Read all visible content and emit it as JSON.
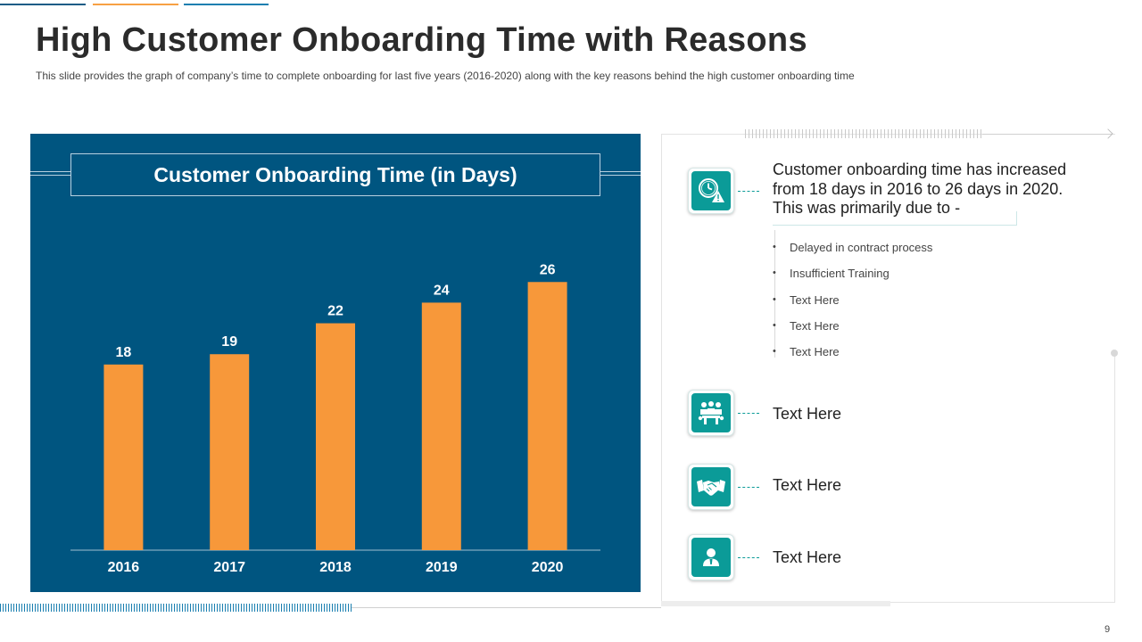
{
  "slide": {
    "title": "High Customer Onboarding Time with Reasons",
    "subtitle": "This slide provides the graph of company’s time to complete onboarding for last five years (2016-2020) along with the key reasons behind the high customer onboarding time",
    "page_number": "9"
  },
  "chart_data": {
    "type": "bar",
    "title": "Customer Onboarding Time (in Days)",
    "categories": [
      "2016",
      "2017",
      "2018",
      "2019",
      "2020"
    ],
    "values": [
      18,
      19,
      22,
      24,
      26
    ],
    "xlabel": "",
    "ylabel": "",
    "ylim": [
      0,
      30
    ],
    "grid": false,
    "bar_color": "#f7983a",
    "background_color": "#005580",
    "data_labels": true
  },
  "reasons": {
    "main_text": "Customer onboarding time has increased from 18 days in 2016 to 26 days in 2020. This was primarily due to -",
    "bullets": [
      "Delayed in contract process",
      "Insufficient Training",
      "Text Here",
      "Text Here",
      "Text Here"
    ],
    "items": [
      {
        "icon": "clock-warning-icon",
        "label": ""
      },
      {
        "icon": "team-meeting-icon",
        "label": "Text Here"
      },
      {
        "icon": "handshake-icon",
        "label": "Text Here"
      },
      {
        "icon": "user-icon",
        "label": "Text Here"
      }
    ],
    "accent_color": "#0b9b98"
  }
}
